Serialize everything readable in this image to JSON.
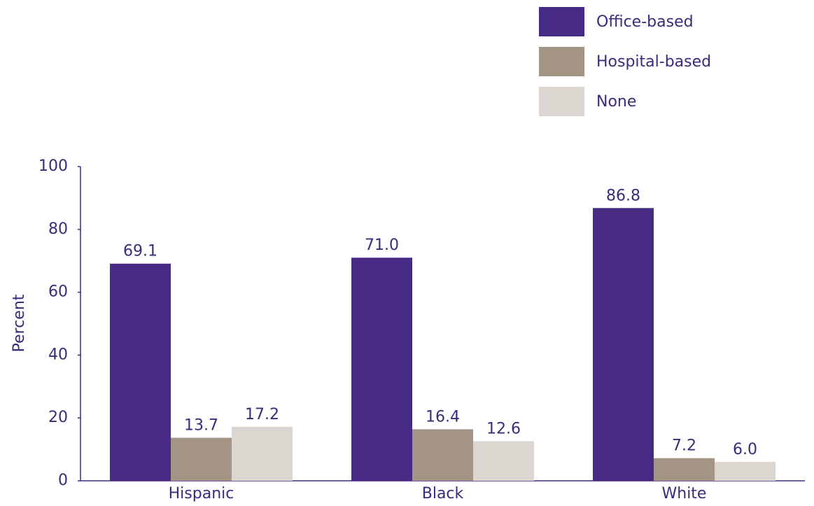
{
  "chart_data": {
    "type": "bar",
    "categories": [
      "Hispanic",
      "Black",
      "White"
    ],
    "series": [
      {
        "name": "Office-based",
        "color": "#472a84",
        "values": [
          69.1,
          71,
          86.8
        ],
        "value_labels": [
          "69.1",
          "71.0",
          "86.8"
        ]
      },
      {
        "name": "Hospital-based",
        "color": "#a39485",
        "values": [
          13.7,
          16.4,
          7.2
        ],
        "value_labels": [
          "13.7",
          "16.4",
          "7.2"
        ]
      },
      {
        "name": "None",
        "color": "#dcd6d1",
        "values": [
          17.2,
          12.6,
          6
        ],
        "value_labels": [
          "17.2",
          "12.6",
          "6.0"
        ]
      }
    ],
    "ylabel": "Percent",
    "ylim": [
      0,
      100
    ],
    "yticks": [
      0,
      20,
      40,
      60,
      80,
      100
    ],
    "legend": "top-right"
  }
}
